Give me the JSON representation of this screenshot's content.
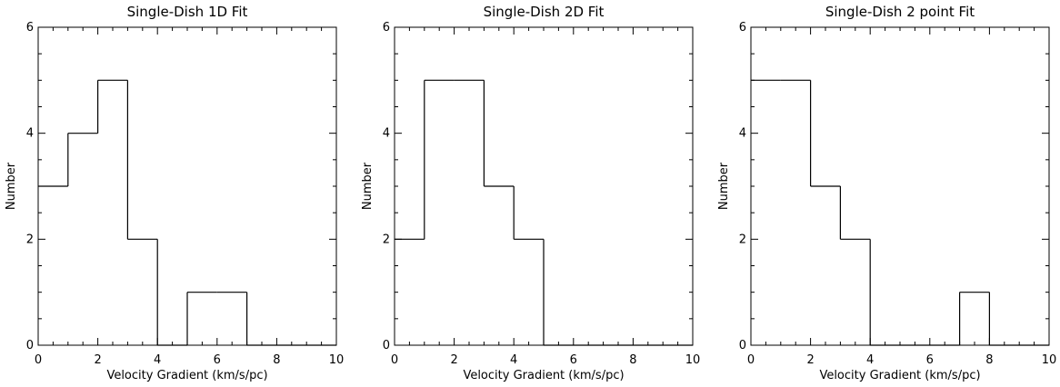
{
  "chart_data": [
    {
      "type": "bar",
      "title": "Single-Dish 1D Fit",
      "xlabel": "Velocity Gradient (km/s/pc)",
      "ylabel": "Number",
      "xlim": [
        0,
        10
      ],
      "ylim": [
        0,
        6
      ],
      "xticks": [
        "0",
        "2",
        "4",
        "6",
        "8",
        "10"
      ],
      "yticks": [
        "0",
        "2",
        "4",
        "6"
      ],
      "bin_edges": [
        0,
        1,
        2,
        3,
        4,
        5,
        6,
        7,
        8,
        9,
        10
      ],
      "values": [
        3,
        4,
        5,
        2,
        0,
        1,
        1,
        0,
        0,
        0
      ]
    },
    {
      "type": "bar",
      "title": "Single-Dish 2D Fit",
      "xlabel": "Velocity Gradient (km/s/pc)",
      "ylabel": "Number",
      "xlim": [
        0,
        10
      ],
      "ylim": [
        0,
        6
      ],
      "xticks": [
        "0",
        "2",
        "4",
        "6",
        "8",
        "10"
      ],
      "yticks": [
        "0",
        "2",
        "4",
        "6"
      ],
      "bin_edges": [
        0,
        1,
        2,
        3,
        4,
        5,
        6,
        7,
        8,
        9,
        10
      ],
      "values": [
        2,
        5,
        5,
        3,
        2,
        0,
        0,
        0,
        0,
        0
      ]
    },
    {
      "type": "bar",
      "title": "Single-Dish 2 point Fit",
      "xlabel": "Velocity Gradient (km/s/pc)",
      "ylabel": "Number",
      "xlim": [
        0,
        10
      ],
      "ylim": [
        0,
        6
      ],
      "xticks": [
        "0",
        "2",
        "4",
        "6",
        "8",
        "10"
      ],
      "yticks": [
        "0",
        "2",
        "4",
        "6"
      ],
      "bin_edges": [
        0,
        1,
        2,
        3,
        4,
        5,
        6,
        7,
        8,
        9,
        10
      ],
      "values": [
        5,
        5,
        3,
        2,
        0,
        0,
        0,
        1,
        0,
        0
      ]
    }
  ]
}
